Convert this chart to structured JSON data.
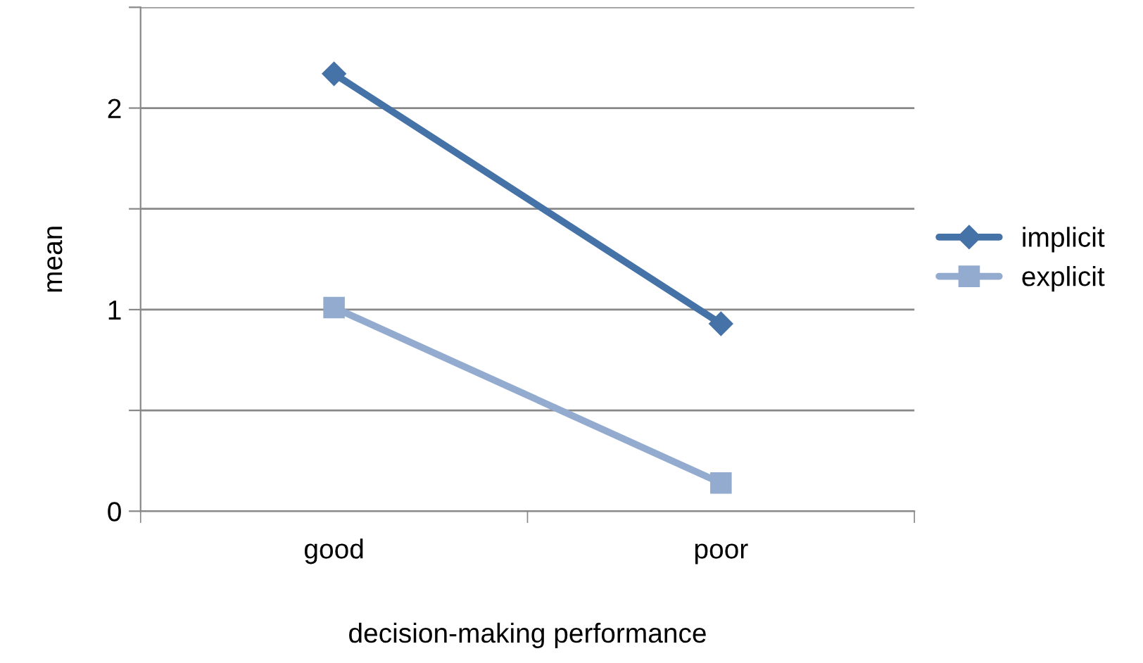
{
  "chart_data": {
    "type": "line",
    "xlabel": "decision-making performance",
    "ylabel": "mean",
    "categories": [
      "good",
      "poor"
    ],
    "series": [
      {
        "name": "implicit",
        "color": "#4572a7",
        "values": [
          2.17,
          0.93
        ],
        "marker": "diamond"
      },
      {
        "name": "explicit",
        "color": "#94abd0",
        "values": [
          1.01,
          0.14
        ],
        "marker": "square"
      }
    ],
    "ylim": [
      0,
      2.5
    ],
    "yticks": [
      0,
      {
        "value": 0.5,
        "label": null
      },
      1,
      {
        "value": 1.5,
        "label": null
      },
      2,
      {
        "value": 2.5,
        "label": null
      }
    ],
    "grid": "y",
    "legend": "right",
    "line_style": "solid"
  }
}
